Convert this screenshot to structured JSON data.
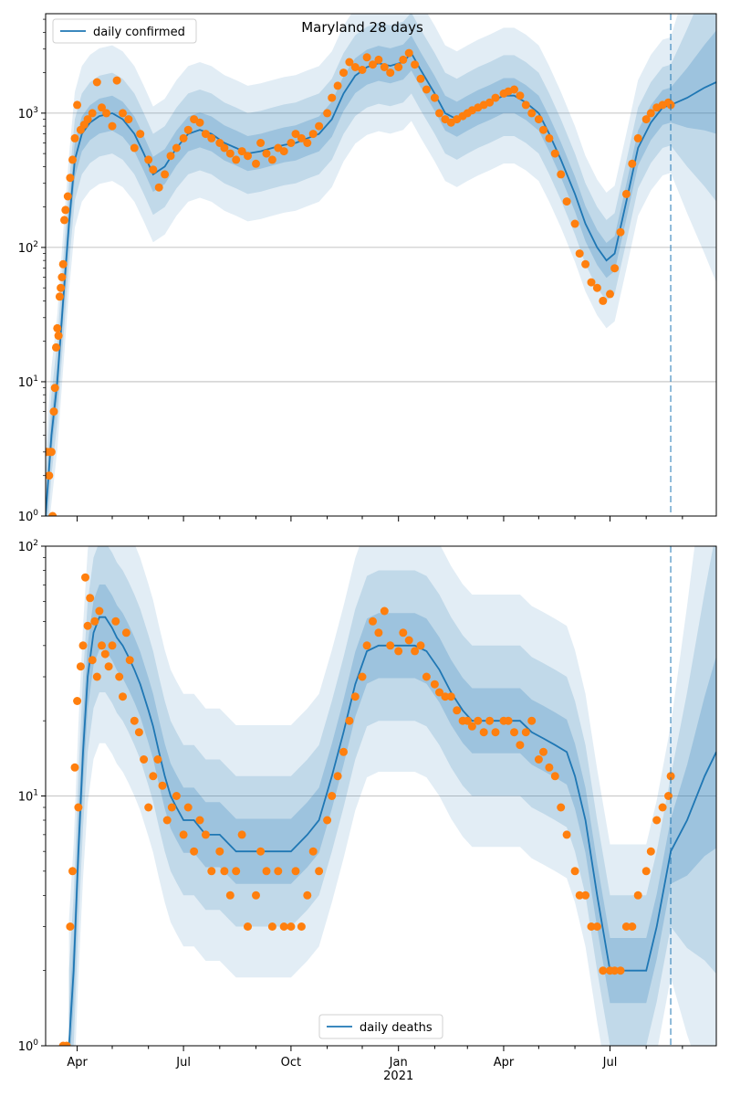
{
  "chart_data": [
    {
      "type": "line",
      "title": "Maryland 28 days",
      "yscale": "log",
      "ylim": [
        1,
        5500
      ],
      "xlim": [
        "2020-03-05",
        "2021-09-30"
      ],
      "y_ticks": [
        {
          "value": 1,
          "base": "10",
          "exp": "0"
        },
        {
          "value": 10,
          "base": "10",
          "exp": "1"
        },
        {
          "value": 100,
          "base": "10",
          "exp": "2"
        },
        {
          "value": 1000,
          "base": "10",
          "exp": "3"
        }
      ],
      "grid": "horizontal",
      "legend": {
        "placement": "top-left",
        "entry": "daily confirmed"
      },
      "forecast_start": "2021-08-22",
      "series": [
        {
          "name": "daily confirmed",
          "kind": "line",
          "color": "#1f77b4",
          "x": [
            "2020-03-05",
            "2020-03-10",
            "2020-03-15",
            "2020-03-20",
            "2020-03-25",
            "2020-03-30",
            "2020-04-05",
            "2020-04-12",
            "2020-04-20",
            "2020-05-01",
            "2020-05-10",
            "2020-05-20",
            "2020-05-28",
            "2020-06-05",
            "2020-06-15",
            "2020-06-25",
            "2020-07-05",
            "2020-07-15",
            "2020-07-25",
            "2020-08-05",
            "2020-08-15",
            "2020-08-25",
            "2020-09-05",
            "2020-09-15",
            "2020-09-25",
            "2020-10-05",
            "2020-10-15",
            "2020-10-25",
            "2020-11-05",
            "2020-11-15",
            "2020-11-25",
            "2020-12-05",
            "2020-12-15",
            "2020-12-25",
            "2021-01-05",
            "2021-01-12",
            "2021-01-20",
            "2021-02-01",
            "2021-02-10",
            "2021-02-20",
            "2021-03-01",
            "2021-03-10",
            "2021-03-20",
            "2021-04-01",
            "2021-04-10",
            "2021-04-20",
            "2021-05-01",
            "2021-05-10",
            "2021-05-20",
            "2021-06-01",
            "2021-06-10",
            "2021-06-20",
            "2021-06-28",
            "2021-07-05",
            "2021-07-15",
            "2021-07-25",
            "2021-08-05",
            "2021-08-15",
            "2021-08-22",
            "2021-09-05",
            "2021-09-20",
            "2021-09-30"
          ],
          "y": [
            1,
            4,
            10,
            40,
            150,
            450,
            700,
            850,
            950,
            1000,
            900,
            700,
            500,
            350,
            400,
            550,
            700,
            750,
            700,
            600,
            550,
            500,
            520,
            550,
            580,
            600,
            650,
            700,
            900,
            1400,
            1900,
            2200,
            2350,
            2250,
            2400,
            2800,
            2100,
            1400,
            1000,
            900,
            1000,
            1100,
            1200,
            1350,
            1350,
            1200,
            1000,
            700,
            450,
            250,
            150,
            100,
            80,
            90,
            220,
            550,
            850,
            1100,
            1150,
            1300,
            1550,
            1700
          ]
        },
        {
          "name": "",
          "kind": "points",
          "color": "#ff7f0e",
          "x": [
            "2020-03-06",
            "2020-03-08",
            "2020-03-09",
            "2020-03-10",
            "2020-03-11",
            "2020-03-12",
            "2020-03-13",
            "2020-03-14",
            "2020-03-15",
            "2020-03-16",
            "2020-03-17",
            "2020-03-18",
            "2020-03-19",
            "2020-03-20",
            "2020-03-21",
            "2020-03-22",
            "2020-03-24",
            "2020-03-26",
            "2020-03-28",
            "2020-03-30",
            "2020-04-01",
            "2020-04-04",
            "2020-04-07",
            "2020-04-10",
            "2020-04-14",
            "2020-04-18",
            "2020-04-22",
            "2020-04-26",
            "2020-05-01",
            "2020-05-05",
            "2020-05-10",
            "2020-05-15",
            "2020-05-20",
            "2020-05-25",
            "2020-06-01",
            "2020-06-05",
            "2020-06-10",
            "2020-06-15",
            "2020-06-20",
            "2020-06-25",
            "2020-07-01",
            "2020-07-05",
            "2020-07-10",
            "2020-07-15",
            "2020-07-20",
            "2020-07-25",
            "2020-08-01",
            "2020-08-05",
            "2020-08-10",
            "2020-08-15",
            "2020-08-20",
            "2020-08-25",
            "2020-09-01",
            "2020-09-05",
            "2020-09-10",
            "2020-09-15",
            "2020-09-20",
            "2020-09-25",
            "2020-10-01",
            "2020-10-05",
            "2020-10-10",
            "2020-10-15",
            "2020-10-20",
            "2020-10-25",
            "2020-11-01",
            "2020-11-05",
            "2020-11-10",
            "2020-11-15",
            "2020-11-20",
            "2020-11-25",
            "2020-12-01",
            "2020-12-05",
            "2020-12-10",
            "2020-12-15",
            "2020-12-20",
            "2020-12-25",
            "2021-01-01",
            "2021-01-05",
            "2021-01-10",
            "2021-01-15",
            "2021-01-20",
            "2021-01-25",
            "2021-02-01",
            "2021-02-05",
            "2021-02-10",
            "2021-02-15",
            "2021-02-20",
            "2021-02-25",
            "2021-03-01",
            "2021-03-05",
            "2021-03-10",
            "2021-03-15",
            "2021-03-20",
            "2021-03-25",
            "2021-04-01",
            "2021-04-05",
            "2021-04-10",
            "2021-04-15",
            "2021-04-20",
            "2021-04-25",
            "2021-05-01",
            "2021-05-05",
            "2021-05-10",
            "2021-05-15",
            "2021-05-20",
            "2021-05-25",
            "2021-06-01",
            "2021-06-05",
            "2021-06-10",
            "2021-06-15",
            "2021-06-20",
            "2021-06-25",
            "2021-07-01",
            "2021-07-05",
            "2021-07-10",
            "2021-07-15",
            "2021-07-20",
            "2021-07-25",
            "2021-08-01",
            "2021-08-05",
            "2021-08-10",
            "2021-08-15",
            "2021-08-20",
            "2021-08-22"
          ],
          "y": [
            3,
            2,
            3,
            3,
            1,
            6,
            9,
            18,
            25,
            22,
            43,
            50,
            60,
            75,
            160,
            190,
            240,
            330,
            450,
            650,
            1150,
            750,
            820,
            900,
            1000,
            1700,
            1100,
            1000,
            800,
            1750,
            1000,
            900,
            550,
            700,
            450,
            380,
            280,
            350,
            480,
            550,
            650,
            750,
            900,
            850,
            700,
            650,
            600,
            550,
            500,
            450,
            520,
            480,
            420,
            600,
            500,
            450,
            550,
            520,
            600,
            700,
            650,
            600,
            700,
            800,
            1000,
            1300,
            1600,
            2000,
            2400,
            2200,
            2100,
            2600,
            2300,
            2500,
            2200,
            2000,
            2200,
            2500,
            2800,
            2300,
            1800,
            1500,
            1300,
            1000,
            900,
            850,
            900,
            950,
            1000,
            1050,
            1100,
            1150,
            1200,
            1300,
            1400,
            1450,
            1500,
            1350,
            1150,
            1000,
            900,
            750,
            650,
            500,
            350,
            220,
            150,
            90,
            75,
            55,
            50,
            40,
            45,
            70,
            130,
            250,
            420,
            650,
            900,
            1000,
            1100,
            1150,
            1200,
            1150
          ]
        }
      ]
    },
    {
      "type": "line",
      "title": "",
      "yscale": "log",
      "ylim": [
        1,
        100
      ],
      "xlim": [
        "2020-03-05",
        "2021-09-30"
      ],
      "y_ticks": [
        {
          "value": 1,
          "base": "10",
          "exp": "0"
        },
        {
          "value": 10,
          "base": "10",
          "exp": "1"
        },
        {
          "value": 100,
          "base": "10",
          "exp": "2"
        }
      ],
      "x_ticks": [
        {
          "date": "2020-04-01",
          "label": "Apr"
        },
        {
          "date": "2020-07-01",
          "label": "Jul"
        },
        {
          "date": "2020-10-01",
          "label": "Oct"
        },
        {
          "date": "2021-01-01",
          "label": "Jan"
        },
        {
          "date": "2021-04-01",
          "label": "Apr"
        },
        {
          "date": "2021-07-01",
          "label": "Jul"
        }
      ],
      "x_year_label": {
        "date": "2021-01-01",
        "label": "2021"
      },
      "grid": "horizontal",
      "legend": {
        "placement": "bottom-center",
        "entry": "daily deaths"
      },
      "forecast_start": "2021-08-22",
      "series": [
        {
          "name": "daily deaths",
          "kind": "line",
          "color": "#1f77b4",
          "x": [
            "2020-03-25",
            "2020-03-29",
            "2020-04-02",
            "2020-04-06",
            "2020-04-10",
            "2020-04-15",
            "2020-04-20",
            "2020-04-25",
            "2020-05-01",
            "2020-05-05",
            "2020-05-10",
            "2020-05-15",
            "2020-05-20",
            "2020-05-25",
            "2020-06-01",
            "2020-06-05",
            "2020-06-10",
            "2020-06-15",
            "2020-06-20",
            "2020-06-25",
            "2020-07-01",
            "2020-07-10",
            "2020-07-20",
            "2020-08-01",
            "2020-08-15",
            "2020-09-01",
            "2020-09-15",
            "2020-10-01",
            "2020-10-15",
            "2020-10-25",
            "2020-11-05",
            "2020-11-15",
            "2020-11-25",
            "2020-12-05",
            "2020-12-15",
            "2020-12-25",
            "2021-01-05",
            "2021-01-15",
            "2021-01-25",
            "2021-02-05",
            "2021-02-15",
            "2021-02-25",
            "2021-03-05",
            "2021-03-15",
            "2021-03-25",
            "2021-04-05",
            "2021-04-15",
            "2021-04-25",
            "2021-05-05",
            "2021-05-15",
            "2021-05-25",
            "2021-06-01",
            "2021-06-10",
            "2021-06-20",
            "2021-07-01",
            "2021-07-10",
            "2021-07-20",
            "2021-08-01",
            "2021-08-10",
            "2021-08-22",
            "2021-09-05",
            "2021-09-20",
            "2021-09-30"
          ],
          "y": [
            1,
            2,
            6,
            15,
            30,
            45,
            52,
            52,
            47,
            43,
            40,
            36,
            32,
            28,
            22,
            19,
            15,
            12,
            10,
            9,
            8,
            8,
            7,
            7,
            6,
            6,
            6,
            6,
            7,
            8,
            12,
            18,
            28,
            38,
            40,
            40,
            40,
            40,
            38,
            32,
            26,
            22,
            20,
            20,
            20,
            20,
            20,
            18,
            17,
            16,
            15,
            12,
            8,
            4,
            2,
            2,
            2,
            2,
            3,
            6,
            8,
            12,
            15
          ]
        },
        {
          "name": "",
          "kind": "points",
          "color": "#ff7f0e",
          "x": [
            "2020-03-20",
            "2020-03-23",
            "2020-03-26",
            "2020-03-28",
            "2020-03-30",
            "2020-04-01",
            "2020-04-02",
            "2020-04-04",
            "2020-04-06",
            "2020-04-08",
            "2020-04-10",
            "2020-04-12",
            "2020-04-14",
            "2020-04-16",
            "2020-04-18",
            "2020-04-20",
            "2020-04-22",
            "2020-04-25",
            "2020-04-28",
            "2020-05-01",
            "2020-05-04",
            "2020-05-07",
            "2020-05-10",
            "2020-05-13",
            "2020-05-16",
            "2020-05-20",
            "2020-05-24",
            "2020-05-28",
            "2020-06-01",
            "2020-06-05",
            "2020-06-09",
            "2020-06-13",
            "2020-06-17",
            "2020-06-21",
            "2020-06-25",
            "2020-07-01",
            "2020-07-05",
            "2020-07-10",
            "2020-07-15",
            "2020-07-20",
            "2020-07-25",
            "2020-08-01",
            "2020-08-05",
            "2020-08-10",
            "2020-08-15",
            "2020-08-20",
            "2020-08-25",
            "2020-09-01",
            "2020-09-05",
            "2020-09-10",
            "2020-09-15",
            "2020-09-20",
            "2020-09-25",
            "2020-10-01",
            "2020-10-05",
            "2020-10-10",
            "2020-10-15",
            "2020-10-20",
            "2020-10-25",
            "2020-11-01",
            "2020-11-05",
            "2020-11-10",
            "2020-11-15",
            "2020-11-20",
            "2020-11-25",
            "2020-12-01",
            "2020-12-05",
            "2020-12-10",
            "2020-12-15",
            "2020-12-20",
            "2020-12-25",
            "2021-01-01",
            "2021-01-05",
            "2021-01-10",
            "2021-01-15",
            "2021-01-20",
            "2021-01-25",
            "2021-02-01",
            "2021-02-05",
            "2021-02-10",
            "2021-02-15",
            "2021-02-20",
            "2021-02-25",
            "2021-03-01",
            "2021-03-05",
            "2021-03-10",
            "2021-03-15",
            "2021-03-20",
            "2021-03-25",
            "2021-04-01",
            "2021-04-05",
            "2021-04-10",
            "2021-04-15",
            "2021-04-20",
            "2021-04-25",
            "2021-05-01",
            "2021-05-05",
            "2021-05-10",
            "2021-05-15",
            "2021-05-20",
            "2021-05-25",
            "2021-06-01",
            "2021-06-05",
            "2021-06-10",
            "2021-06-15",
            "2021-06-20",
            "2021-06-25",
            "2021-07-01",
            "2021-07-05",
            "2021-07-10",
            "2021-07-15",
            "2021-07-20",
            "2021-07-25",
            "2021-08-01",
            "2021-08-05",
            "2021-08-10",
            "2021-08-15",
            "2021-08-20",
            "2021-08-22"
          ],
          "y": [
            1,
            1,
            3,
            5,
            13,
            24,
            9,
            33,
            40,
            75,
            48,
            62,
            35,
            50,
            30,
            55,
            40,
            37,
            33,
            40,
            50,
            30,
            25,
            45,
            35,
            20,
            18,
            14,
            9,
            12,
            14,
            11,
            8,
            9,
            10,
            7,
            9,
            6,
            8,
            7,
            5,
            6,
            5,
            4,
            5,
            7,
            3,
            4,
            6,
            5,
            3,
            5,
            3,
            3,
            5,
            3,
            4,
            6,
            5,
            8,
            10,
            12,
            15,
            20,
            25,
            30,
            40,
            50,
            45,
            55,
            40,
            38,
            45,
            42,
            38,
            40,
            30,
            28,
            26,
            25,
            25,
            22,
            20,
            20,
            19,
            20,
            18,
            20,
            18,
            20,
            20,
            18,
            16,
            18,
            20,
            14,
            15,
            13,
            12,
            9,
            7,
            5,
            4,
            4,
            3,
            3,
            2,
            2,
            2,
            2,
            3,
            3,
            4,
            5,
            6,
            8,
            9,
            10,
            12
          ]
        }
      ]
    }
  ]
}
